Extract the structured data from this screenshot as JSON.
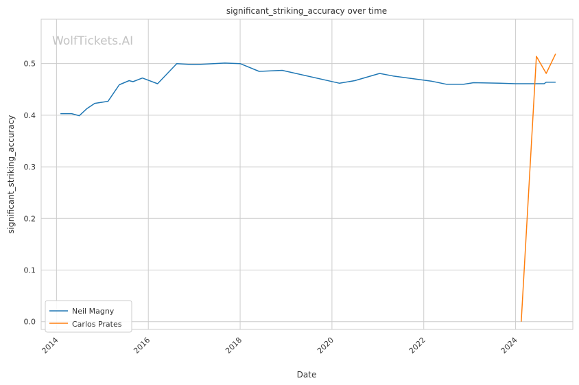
{
  "watermark": "WolfTickets.AI",
  "chart_data": {
    "type": "line",
    "title": "significant_striking_accuracy over time",
    "xlabel": "Date",
    "ylabel": "significant_striking_accuracy",
    "xlim": [
      "2013-09-01",
      "2025-04-01"
    ],
    "ylim": [
      -0.015,
      0.586
    ],
    "x_ticks": [
      "2014",
      "2016",
      "2018",
      "2020",
      "2022",
      "2024"
    ],
    "y_ticks": [
      "0.0",
      "0.1",
      "0.2",
      "0.3",
      "0.4",
      "0.5"
    ],
    "grid": true,
    "legend_position": "lower-left",
    "series": [
      {
        "name": "Neil Magny",
        "color": "#1f77b4",
        "points": [
          [
            "2014-02-01",
            0.403
          ],
          [
            "2014-05-01",
            0.403
          ],
          [
            "2014-07-01",
            0.399
          ],
          [
            "2014-09-01",
            0.413
          ],
          [
            "2014-11-01",
            0.423
          ],
          [
            "2015-02-15",
            0.427
          ],
          [
            "2015-05-15",
            0.459
          ],
          [
            "2015-08-01",
            0.467
          ],
          [
            "2015-09-01",
            0.465
          ],
          [
            "2015-11-15",
            0.472
          ],
          [
            "2016-03-15",
            0.461
          ],
          [
            "2016-08-15",
            0.5
          ],
          [
            "2017-01-01",
            0.498
          ],
          [
            "2017-09-01",
            0.501
          ],
          [
            "2018-01-01",
            0.5
          ],
          [
            "2018-06-01",
            0.485
          ],
          [
            "2018-12-01",
            0.487
          ],
          [
            "2020-03-01",
            0.462
          ],
          [
            "2020-07-01",
            0.467
          ],
          [
            "2021-01-15",
            0.481
          ],
          [
            "2021-05-01",
            0.476
          ],
          [
            "2022-03-01",
            0.466
          ],
          [
            "2022-07-01",
            0.46
          ],
          [
            "2022-11-15",
            0.46
          ],
          [
            "2023-02-01",
            0.463
          ],
          [
            "2023-09-01",
            0.462
          ],
          [
            "2024-01-01",
            0.461
          ],
          [
            "2024-08-15",
            0.461
          ],
          [
            "2024-09-01",
            0.464
          ],
          [
            "2024-11-15",
            0.464
          ]
        ]
      },
      {
        "name": "Carlos Prates",
        "color": "#ff7f0e",
        "points": [
          [
            "2024-02-15",
            0.0
          ],
          [
            "2024-06-15",
            0.514
          ],
          [
            "2024-09-01",
            0.481
          ],
          [
            "2024-11-15",
            0.519
          ]
        ]
      }
    ]
  }
}
